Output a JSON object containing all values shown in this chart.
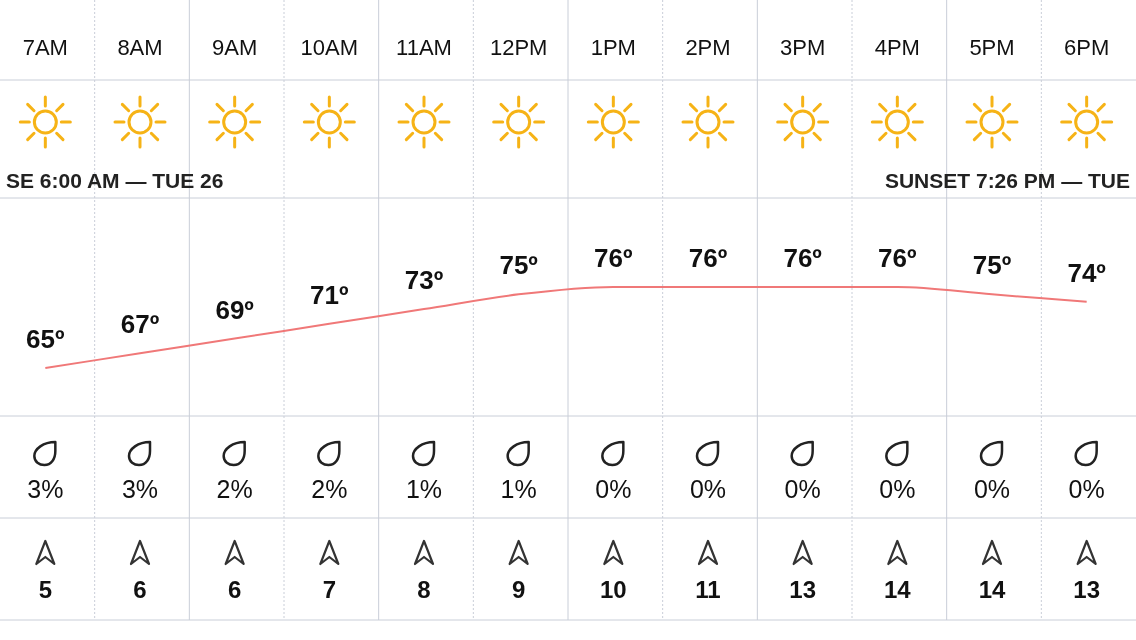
{
  "chart_data": [
    {
      "type": "line",
      "categories": [
        "7AM",
        "8AM",
        "9AM",
        "10AM",
        "11AM",
        "12PM",
        "1PM",
        "2PM",
        "3PM",
        "4PM",
        "5PM",
        "6PM"
      ],
      "series": [
        {
          "color": "#f07878",
          "values": [
            65,
            67,
            69,
            71,
            73,
            75,
            76,
            76,
            76,
            76,
            75,
            74
          ],
          "value_labels": [
            "65º",
            "67º",
            "69º",
            "71º",
            "73º",
            "75º",
            "76º",
            "76º",
            "76º",
            "76º",
            "75º",
            "74º"
          ]
        }
      ],
      "annotations": [
        "SE 6:00 AM — TUE 26",
        "SUNSET 7:26 PM — TUE"
      ]
    },
    {
      "type": "other",
      "categories": [
        null,
        null,
        null,
        null,
        null,
        null,
        null,
        null,
        null,
        null,
        null,
        null
      ],
      "values": [
        3,
        3,
        2,
        2,
        1,
        1,
        0,
        0,
        0,
        0,
        0,
        0
      ],
      "value_labels": [
        "3%",
        "3%",
        "2%",
        "2%",
        "1%",
        "1%",
        "0%",
        "0%",
        "0%",
        "0%",
        "0%",
        "0%"
      ]
    },
    {
      "type": "other",
      "categories": [
        null,
        null,
        null,
        null,
        null,
        null,
        null,
        null,
        null,
        null,
        null,
        null
      ],
      "values": [
        5,
        6,
        6,
        7,
        8,
        9,
        10,
        11,
        13,
        14,
        14,
        13
      ],
      "data_labels": true
    }
  ]
}
